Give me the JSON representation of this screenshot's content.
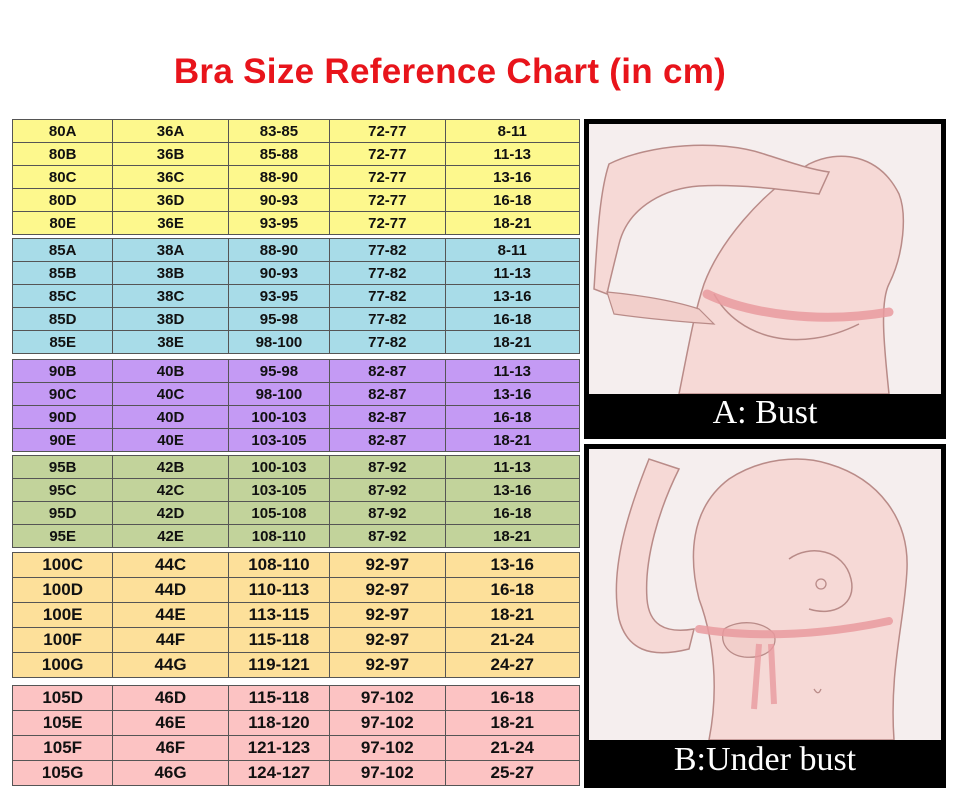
{
  "title": "Bra Size Reference Chart (in cm)",
  "chart_data": {
    "type": "table",
    "title": "Bra Size Reference Chart (in cm)",
    "groups": [
      {
        "color": "#fdf88d",
        "rows": [
          [
            "80A",
            "36A",
            "83-85",
            "72-77",
            "8-11"
          ],
          [
            "80B",
            "36B",
            "85-88",
            "72-77",
            "11-13"
          ],
          [
            "80C",
            "36C",
            "88-90",
            "72-77",
            "13-16"
          ],
          [
            "80D",
            "36D",
            "90-93",
            "72-77",
            "16-18"
          ],
          [
            "80E",
            "36E",
            "93-95",
            "72-77",
            "18-21"
          ]
        ]
      },
      {
        "color": "#a8dce8",
        "rows": [
          [
            "85A",
            "38A",
            "88-90",
            "77-82",
            "8-11"
          ],
          [
            "85B",
            "38B",
            "90-93",
            "77-82",
            "11-13"
          ],
          [
            "85C",
            "38C",
            "93-95",
            "77-82",
            "13-16"
          ],
          [
            "85D",
            "38D",
            "95-98",
            "77-82",
            "16-18"
          ],
          [
            "85E",
            "38E",
            "98-100",
            "77-82",
            "18-21"
          ]
        ]
      },
      {
        "color": "#c49af4",
        "rows": [
          [
            "90B",
            "40B",
            "95-98",
            "82-87",
            "11-13"
          ],
          [
            "90C",
            "40C",
            "98-100",
            "82-87",
            "13-16"
          ],
          [
            "90D",
            "40D",
            "100-103",
            "82-87",
            "16-18"
          ],
          [
            "90E",
            "40E",
            "103-105",
            "82-87",
            "18-21"
          ]
        ]
      },
      {
        "color": "#c2d39b",
        "rows": [
          [
            "95B",
            "42B",
            "100-103",
            "87-92",
            "11-13"
          ],
          [
            "95C",
            "42C",
            "103-105",
            "87-92",
            "13-16"
          ],
          [
            "95D",
            "42D",
            "105-108",
            "87-92",
            "16-18"
          ],
          [
            "95E",
            "42E",
            "108-110",
            "87-92",
            "18-21"
          ]
        ]
      },
      {
        "color": "#fde09a",
        "rows": [
          [
            "100C",
            "44C",
            "108-110",
            "92-97",
            "13-16"
          ],
          [
            "100D",
            "44D",
            "110-113",
            "92-97",
            "16-18"
          ],
          [
            "100E",
            "44E",
            "113-115",
            "92-97",
            "18-21"
          ],
          [
            "100F",
            "44F",
            "115-118",
            "92-97",
            "21-24"
          ],
          [
            "100G",
            "44G",
            "119-121",
            "92-97",
            "24-27"
          ]
        ]
      },
      {
        "color": "#fcc3c3",
        "rows": [
          [
            "105D",
            "46D",
            "115-118",
            "97-102",
            "16-18"
          ],
          [
            "105E",
            "46E",
            "118-120",
            "97-102",
            "18-21"
          ],
          [
            "105F",
            "46F",
            "121-123",
            "97-102",
            "21-24"
          ],
          [
            "105G",
            "46G",
            "124-127",
            "97-102",
            "25-27"
          ]
        ]
      }
    ]
  },
  "panels": {
    "bust_caption": "A: Bust",
    "under_bust_caption": "B:Under bust",
    "skin_color": "#f6d9d6",
    "tape_color": "#e99a9f"
  }
}
